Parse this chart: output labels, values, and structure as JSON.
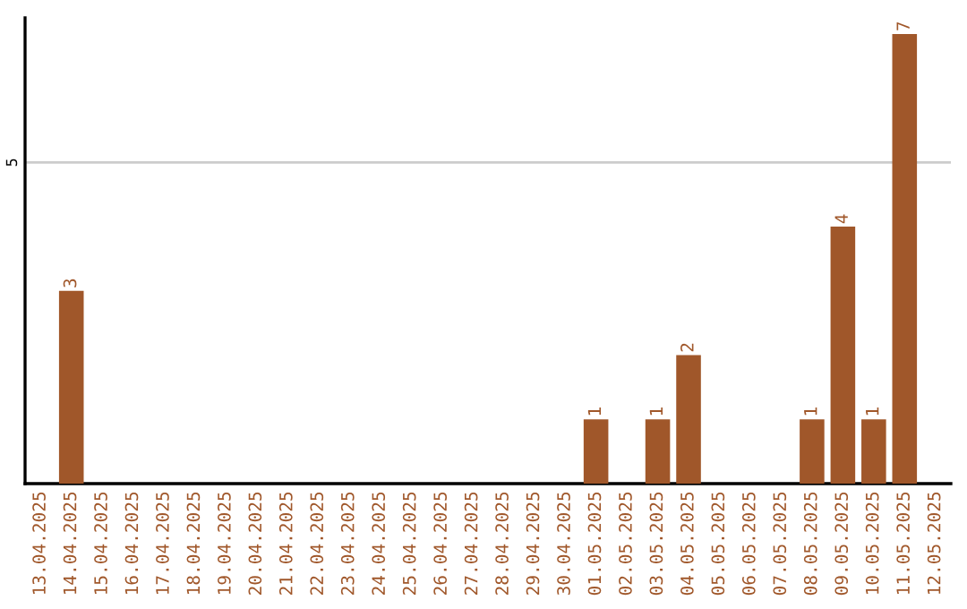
{
  "chart_data": {
    "type": "bar",
    "categories": [
      "13.04.2025",
      "14.04.2025",
      "15.04.2025",
      "16.04.2025",
      "17.04.2025",
      "18.04.2025",
      "19.04.2025",
      "20.04.2025",
      "21.04.2025",
      "22.04.2025",
      "23.04.2025",
      "24.04.2025",
      "25.04.2025",
      "26.04.2025",
      "27.04.2025",
      "28.04.2025",
      "29.04.2025",
      "30.04.2025",
      "01.05.2025",
      "02.05.2025",
      "03.05.2025",
      "04.05.2025",
      "05.05.2025",
      "06.05.2025",
      "07.05.2025",
      "08.05.2025",
      "09.05.2025",
      "10.05.2025",
      "11.05.2025",
      "12.05.2025"
    ],
    "values": [
      0,
      3,
      0,
      0,
      0,
      0,
      0,
      0,
      0,
      0,
      0,
      0,
      0,
      0,
      0,
      0,
      0,
      0,
      1,
      0,
      1,
      2,
      0,
      0,
      0,
      1,
      4,
      1,
      7,
      0
    ],
    "value_labels": [
      null,
      "3",
      null,
      null,
      null,
      null,
      null,
      null,
      null,
      null,
      null,
      null,
      null,
      null,
      null,
      null,
      null,
      null,
      "1",
      null,
      "1",
      "2",
      null,
      null,
      null,
      "1",
      "4",
      "1",
      "7",
      null
    ],
    "color": "#a0572a",
    "ylim": [
      0,
      7.25
    ],
    "yticks": [
      5
    ],
    "grid": "y",
    "legend": false
  }
}
